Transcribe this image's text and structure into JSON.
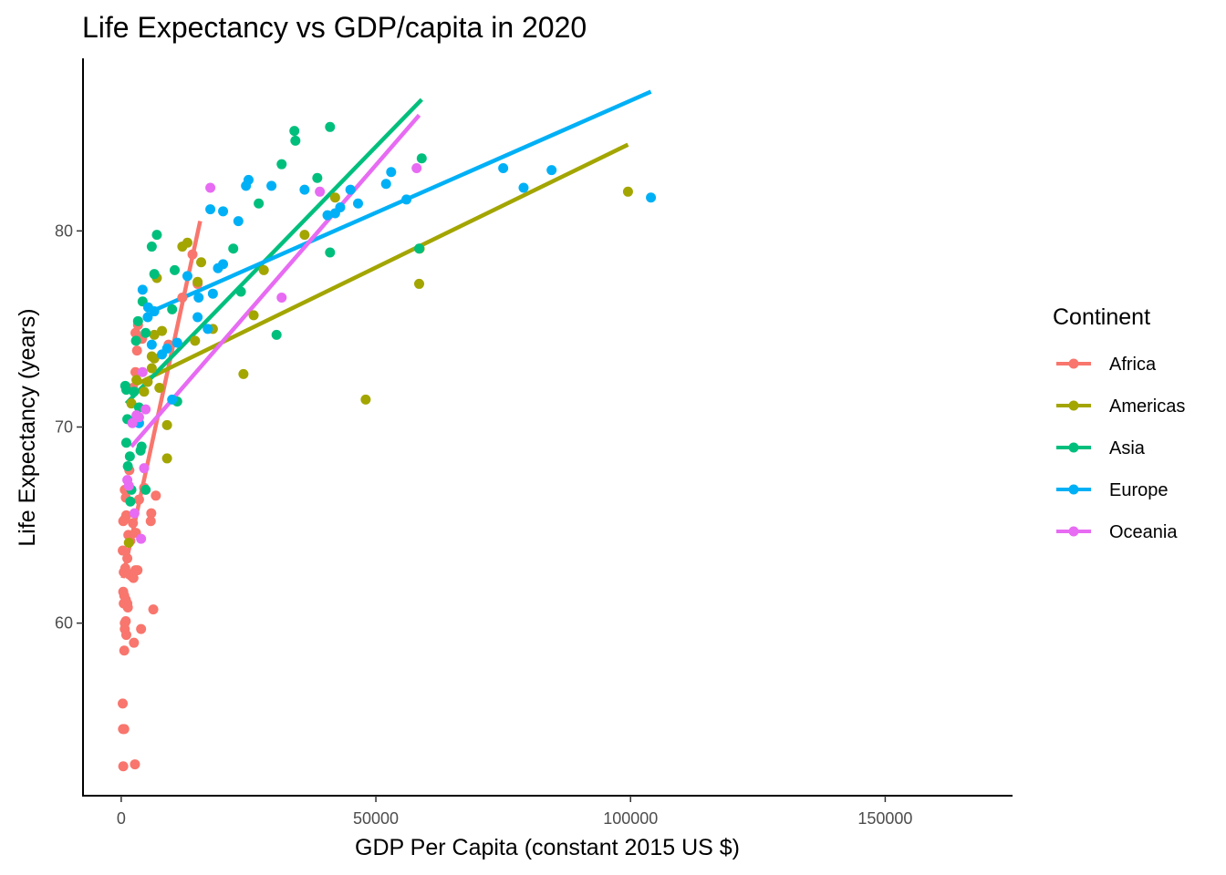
{
  "chart_data": {
    "type": "scatter",
    "title": "Life Expectancy vs GDP/capita in 2020",
    "xlabel": "GDP Per Capita (constant 2015 US $)",
    "ylabel": "Life Expectancy (years)",
    "xlim": [
      -7500,
      175000
    ],
    "ylim": [
      51.2,
      88.8
    ],
    "xticks": [
      0,
      50000,
      100000,
      150000
    ],
    "xtick_labels": [
      "0",
      "50000",
      "100000",
      "150000"
    ],
    "yticks": [
      60,
      70,
      80
    ],
    "ytick_labels": [
      "60",
      "70",
      "80"
    ],
    "grid": false,
    "legend": {
      "title": "Continent",
      "position": "right"
    },
    "series": [
      {
        "name": "Africa",
        "color": "#F8766D",
        "trend": {
          "x": [
            300,
            15500
          ],
          "y": [
            62.3,
            80.5
          ]
        },
        "points": [
          [
            300,
            55.9
          ],
          [
            350,
            54.6
          ],
          [
            400,
            52.7
          ],
          [
            600,
            54.6
          ],
          [
            2700,
            52.8
          ],
          [
            400,
            61.6
          ],
          [
            500,
            61.0
          ],
          [
            600,
            61.4
          ],
          [
            700,
            60.0
          ],
          [
            900,
            60.1
          ],
          [
            700,
            59.7
          ],
          [
            1200,
            61.0
          ],
          [
            1000,
            59.4
          ],
          [
            600,
            58.6
          ],
          [
            900,
            61.2
          ],
          [
            1300,
            60.8
          ],
          [
            2500,
            59.0
          ],
          [
            3900,
            59.7
          ],
          [
            6300,
            60.7
          ],
          [
            300,
            63.7
          ],
          [
            500,
            62.6
          ],
          [
            800,
            62.8
          ],
          [
            1200,
            63.3
          ],
          [
            1500,
            62.5
          ],
          [
            2000,
            62.4
          ],
          [
            2400,
            62.3
          ],
          [
            2800,
            62.7
          ],
          [
            3200,
            62.7
          ],
          [
            400,
            65.2
          ],
          [
            700,
            65.3
          ],
          [
            1000,
            65.5
          ],
          [
            1400,
            64.5
          ],
          [
            1800,
            64.2
          ],
          [
            2300,
            65.1
          ],
          [
            2900,
            64.6
          ],
          [
            700,
            66.8
          ],
          [
            900,
            66.4
          ],
          [
            1600,
            67.8
          ],
          [
            3500,
            66.3
          ],
          [
            4500,
            66.9
          ],
          [
            5900,
            65.6
          ],
          [
            5800,
            65.2
          ],
          [
            6800,
            66.5
          ],
          [
            2300,
            72.0
          ],
          [
            2800,
            72.8
          ],
          [
            3100,
            73.9
          ],
          [
            3300,
            75.2
          ],
          [
            2800,
            74.8
          ],
          [
            4100,
            74.5
          ],
          [
            12000,
            76.6
          ],
          [
            15000,
            77.3
          ],
          [
            14000,
            78.8
          ],
          [
            9300,
            74.2
          ]
        ]
      },
      {
        "name": "Americas",
        "color": "#A3A500",
        "trend": {
          "x": [
            1500,
            99500
          ],
          "y": [
            72.0,
            84.4
          ]
        },
        "points": [
          [
            1500,
            64.1
          ],
          [
            2000,
            71.2
          ],
          [
            3000,
            72.4
          ],
          [
            4500,
            71.8
          ],
          [
            5200,
            72.3
          ],
          [
            6000,
            73.0
          ],
          [
            6500,
            73.5
          ],
          [
            7500,
            72.0
          ],
          [
            8000,
            74.9
          ],
          [
            9000,
            70.1
          ],
          [
            9000,
            68.4
          ],
          [
            6000,
            73.6
          ],
          [
            6500,
            74.7
          ],
          [
            7000,
            77.6
          ],
          [
            12000,
            79.2
          ],
          [
            13000,
            79.4
          ],
          [
            15000,
            77.4
          ],
          [
            15700,
            78.4
          ],
          [
            14500,
            74.4
          ],
          [
            18000,
            75.0
          ],
          [
            24000,
            72.7
          ],
          [
            26000,
            75.7
          ],
          [
            28000,
            78.0
          ],
          [
            36000,
            79.8
          ],
          [
            42000,
            81.7
          ],
          [
            48000,
            71.4
          ],
          [
            58500,
            77.3
          ],
          [
            58600,
            79.1
          ],
          [
            99500,
            82.0
          ]
        ]
      },
      {
        "name": "Asia",
        "color": "#00BF7D",
        "trend": {
          "x": [
            1000,
            59000
          ],
          "y": [
            71.2,
            86.7
          ]
        },
        "points": [
          [
            800,
            72.1
          ],
          [
            1000,
            71.9
          ],
          [
            1200,
            70.4
          ],
          [
            1000,
            69.2
          ],
          [
            1300,
            68.0
          ],
          [
            1700,
            68.5
          ],
          [
            2000,
            66.8
          ],
          [
            1800,
            66.2
          ],
          [
            3300,
            70.3
          ],
          [
            3500,
            71.0
          ],
          [
            3800,
            68.8
          ],
          [
            4000,
            69.0
          ],
          [
            4800,
            66.8
          ],
          [
            2500,
            71.8
          ],
          [
            2900,
            74.4
          ],
          [
            3300,
            75.4
          ],
          [
            4200,
            76.4
          ],
          [
            4800,
            74.8
          ],
          [
            6000,
            79.2
          ],
          [
            6500,
            77.8
          ],
          [
            7000,
            79.8
          ],
          [
            10500,
            78.0
          ],
          [
            11000,
            71.3
          ],
          [
            10000,
            76.0
          ],
          [
            22000,
            79.1
          ],
          [
            23500,
            76.9
          ],
          [
            27000,
            81.4
          ],
          [
            30500,
            74.7
          ],
          [
            31500,
            83.4
          ],
          [
            34000,
            85.1
          ],
          [
            34200,
            84.6
          ],
          [
            38500,
            82.7
          ],
          [
            41000,
            78.9
          ],
          [
            41000,
            85.3
          ],
          [
            58500,
            79.1
          ],
          [
            59000,
            83.7
          ]
        ]
      },
      {
        "name": "Europe",
        "color": "#00B0F6",
        "trend": {
          "x": [
            6000,
            104000
          ],
          "y": [
            75.9,
            87.1
          ]
        },
        "points": [
          [
            2600,
            70.3
          ],
          [
            3500,
            70.2
          ],
          [
            4200,
            77.0
          ],
          [
            5200,
            75.6
          ],
          [
            5300,
            76.1
          ],
          [
            6000,
            74.2
          ],
          [
            6500,
            75.9
          ],
          [
            8000,
            73.7
          ],
          [
            9000,
            74.0
          ],
          [
            10000,
            71.4
          ],
          [
            11000,
            74.3
          ],
          [
            13000,
            77.7
          ],
          [
            15000,
            75.6
          ],
          [
            15200,
            76.6
          ],
          [
            17000,
            75.0
          ],
          [
            17500,
            81.1
          ],
          [
            18000,
            76.8
          ],
          [
            19000,
            78.1
          ],
          [
            20000,
            81.0
          ],
          [
            20000,
            78.3
          ],
          [
            23000,
            80.5
          ],
          [
            24500,
            82.3
          ],
          [
            25000,
            82.6
          ],
          [
            29500,
            82.3
          ],
          [
            36000,
            82.1
          ],
          [
            40500,
            80.8
          ],
          [
            42000,
            80.9
          ],
          [
            43000,
            81.2
          ],
          [
            45000,
            82.1
          ],
          [
            46500,
            81.4
          ],
          [
            52000,
            82.4
          ],
          [
            53000,
            83.0
          ],
          [
            56000,
            81.6
          ],
          [
            75000,
            83.2
          ],
          [
            79000,
            82.2
          ],
          [
            84500,
            83.1
          ],
          [
            104000,
            81.7
          ]
        ]
      },
      {
        "name": "Oceania",
        "color": "#E76BF3",
        "trend": {
          "x": [
            2000,
            58500
          ],
          "y": [
            69.0,
            85.9
          ]
        },
        "points": [
          [
            1200,
            67.3
          ],
          [
            1500,
            67.0
          ],
          [
            2200,
            70.2
          ],
          [
            2600,
            65.6
          ],
          [
            3000,
            70.6
          ],
          [
            3500,
            70.5
          ],
          [
            3900,
            64.3
          ],
          [
            4200,
            72.8
          ],
          [
            4500,
            67.9
          ],
          [
            4800,
            70.9
          ],
          [
            17500,
            82.2
          ],
          [
            31500,
            76.6
          ],
          [
            39000,
            82.0
          ],
          [
            58000,
            83.2
          ]
        ]
      }
    ]
  }
}
